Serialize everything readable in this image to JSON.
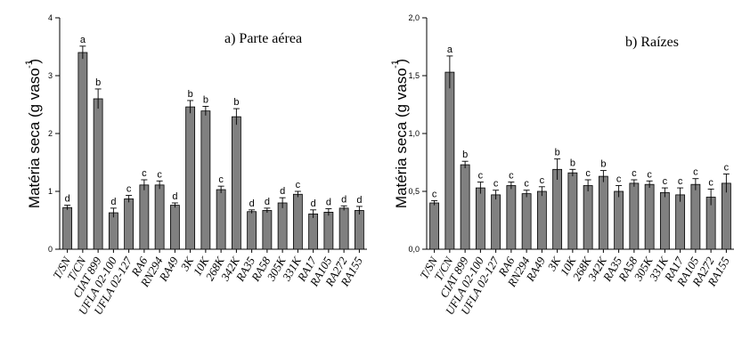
{
  "chart_data": [
    {
      "type": "bar",
      "title": "a) Parte aérea",
      "ylabel": "Matéria seca (g vaso",
      "ylabel_exponent": "-1",
      "ylabel_close": ")",
      "ylim": [
        0,
        4
      ],
      "yticks": [
        "0",
        "1",
        "2",
        "3",
        "4"
      ],
      "categories": [
        "T/SN",
        "T/CN",
        "CIAT 899",
        "UFLA 02-100",
        "UFLA 02-127",
        "RA6",
        "RN294",
        "RA49",
        "3K",
        "10K",
        "268K",
        "342K",
        "RA35",
        "RA58",
        "305K",
        "331K",
        "RA17",
        "RA105",
        "RA272",
        "RA155"
      ],
      "values": [
        0.72,
        3.4,
        2.6,
        0.63,
        0.87,
        1.11,
        1.11,
        0.76,
        2.46,
        2.39,
        1.03,
        2.29,
        0.65,
        0.67,
        0.8,
        0.95,
        0.61,
        0.64,
        0.71,
        0.67
      ],
      "errors": [
        0.04,
        0.11,
        0.17,
        0.08,
        0.06,
        0.09,
        0.07,
        0.04,
        0.11,
        0.08,
        0.06,
        0.14,
        0.03,
        0.04,
        0.09,
        0.05,
        0.07,
        0.06,
        0.04,
        0.07
      ],
      "letters": [
        "d",
        "a",
        "b",
        "d",
        "c",
        "c",
        "c",
        "d",
        "b",
        "b",
        "c",
        "b",
        "d",
        "d",
        "d",
        "c",
        "d",
        "d",
        "d",
        "d"
      ],
      "bar_color": "#808080"
    },
    {
      "type": "bar",
      "title": "b) Raízes",
      "ylabel": "Matéria seca (g vaso",
      "ylabel_exponent": "-1",
      "ylabel_close": ")",
      "ylim": [
        0,
        2
      ],
      "yticks": [
        "0,0",
        "0,5",
        "1,0",
        "1,5",
        "2,0"
      ],
      "categories": [
        "T/SN",
        "T/CN",
        "CIAT 899",
        "UFLA 02-100",
        "UFLA 02-127",
        "RA6",
        "RN294",
        "RA49",
        "3K",
        "10K",
        "268K",
        "342K",
        "RA35",
        "RA58",
        "305K",
        "331K",
        "RA17",
        "RA105",
        "RA272",
        "RA155"
      ],
      "values": [
        0.4,
        1.53,
        0.73,
        0.53,
        0.47,
        0.55,
        0.48,
        0.5,
        0.69,
        0.66,
        0.55,
        0.63,
        0.5,
        0.57,
        0.56,
        0.49,
        0.47,
        0.56,
        0.45,
        0.57
      ],
      "errors": [
        0.02,
        0.14,
        0.03,
        0.05,
        0.04,
        0.03,
        0.03,
        0.04,
        0.09,
        0.03,
        0.05,
        0.05,
        0.05,
        0.03,
        0.03,
        0.04,
        0.06,
        0.05,
        0.07,
        0.08
      ],
      "letters": [
        "c",
        "a",
        "b",
        "c",
        "c",
        "c",
        "c",
        "c",
        "b",
        "b",
        "c",
        "b",
        "c",
        "c",
        "c",
        "c",
        "c",
        "c",
        "c",
        "c"
      ],
      "bar_color": "#808080"
    }
  ]
}
